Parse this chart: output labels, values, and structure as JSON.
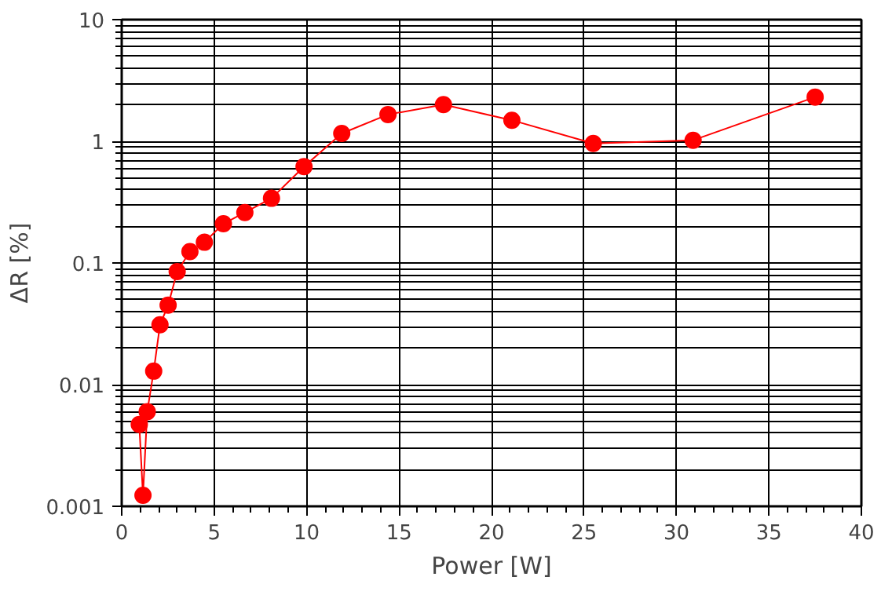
{
  "chart_data": {
    "type": "line",
    "xlabel": "Power [W]",
    "ylabel": "ΔR [%]",
    "x": [
      0.95,
      1.15,
      1.38,
      1.73,
      2.07,
      2.51,
      3.0,
      3.69,
      4.47,
      5.5,
      6.66,
      8.1,
      9.86,
      11.9,
      14.4,
      17.4,
      21.1,
      25.5,
      30.9,
      37.5
    ],
    "series": [
      {
        "color": "#ff0000",
        "values": [
          0.0047,
          0.00123,
          0.006,
          0.0129,
          0.031,
          0.045,
          0.085,
          0.124,
          0.148,
          0.21,
          0.26,
          0.34,
          0.62,
          1.16,
          1.66,
          2.0,
          1.49,
          0.96,
          1.02,
          2.31
        ]
      }
    ],
    "xlim": [
      0,
      40
    ],
    "xticks": [
      0,
      5,
      10,
      15,
      20,
      25,
      30,
      35,
      40
    ],
    "ylim": [
      0.001,
      10
    ],
    "yticks": [
      0.001,
      0.01,
      0.1,
      1,
      10
    ],
    "log": "y",
    "grid": true,
    "marker": "circle",
    "line_style": "solid"
  }
}
